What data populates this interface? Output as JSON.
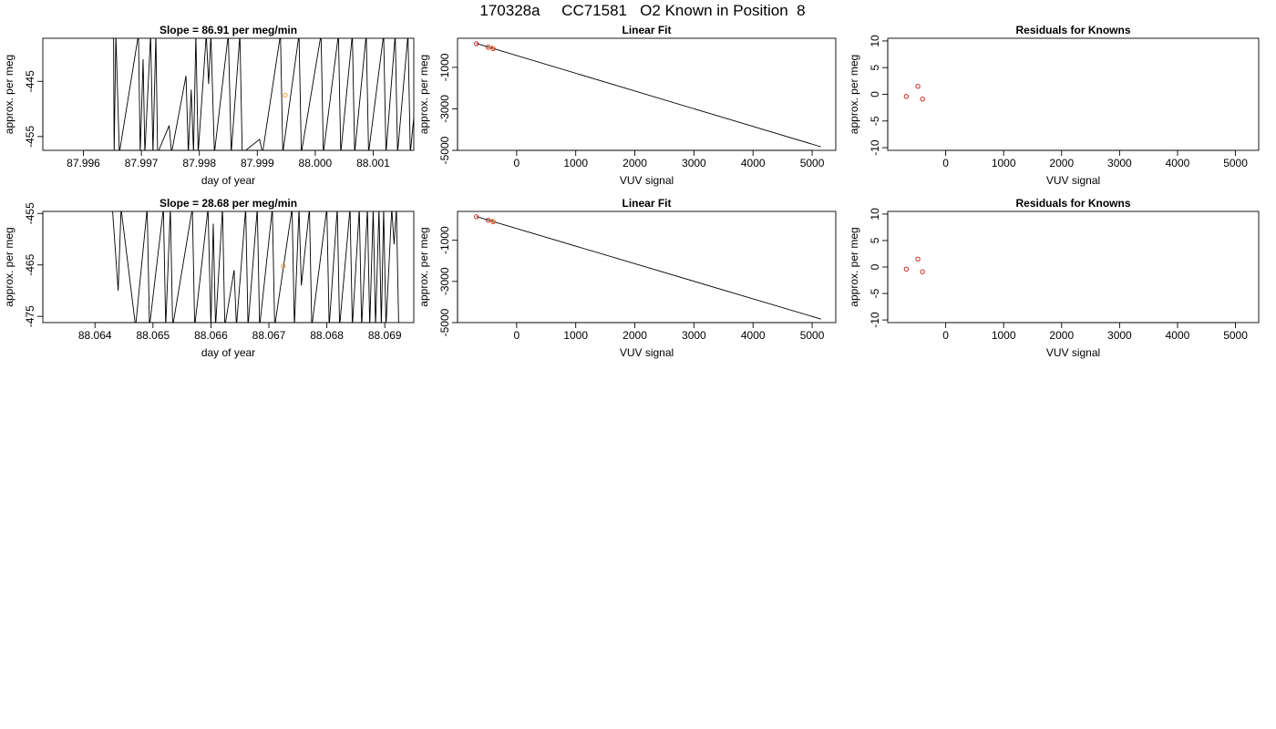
{
  "title": "170328a     CC71581   O2 Known in Position  8",
  "colors": {
    "trace": "#000000",
    "known_point": "#cc2222",
    "sample_point": "#f0a040",
    "frame": "#000000"
  },
  "chart_data": [
    {
      "id": "row1-drift",
      "type": "line",
      "title": "Slope =  86.91  per meg/min",
      "xlabel": "day of year",
      "ylabel": "approx. per meg",
      "xlim": [
        87.9953,
        88.0017
      ],
      "ylim": [
        -457.5,
        -437.2
      ],
      "xticks": [
        87.996,
        87.997,
        87.998,
        87.999,
        88.0,
        88.001
      ],
      "xtick_labels": [
        "87.996",
        "87.997",
        "87.998",
        "87.999",
        "88.000",
        "88.001"
      ],
      "yticks": [
        -445,
        -455
      ],
      "ytick_labels": [
        "-445",
        "-455"
      ],
      "series": [
        {
          "values": [
            [
              87.99652,
              -436.5
            ],
            [
              87.99653,
              -458.0
            ],
            [
              87.99656,
              -436.5
            ],
            [
              87.99662,
              -458.0
            ],
            [
              87.99695,
              -436.5
            ],
            [
              87.99698,
              -458.0
            ],
            [
              87.99703,
              -441.0
            ],
            [
              87.99706,
              -458.0
            ],
            [
              87.99716,
              -436.5
            ],
            [
              87.9972,
              -458.0
            ],
            [
              87.99725,
              -436.5
            ],
            [
              87.99728,
              -458.0
            ],
            [
              87.99748,
              -453.0
            ],
            [
              87.99752,
              -458.0
            ],
            [
              87.99777,
              -444.0
            ],
            [
              87.99781,
              -458.0
            ],
            [
              87.99786,
              -446.5
            ],
            [
              87.9979,
              -458.0
            ],
            [
              87.99794,
              -436.5
            ],
            [
              87.99798,
              -458.0
            ],
            [
              87.99812,
              -436.5
            ],
            [
              87.99816,
              -445.5
            ],
            [
              87.9982,
              -436.5
            ],
            [
              87.99826,
              -458.0
            ],
            [
              87.9985,
              -436.5
            ],
            [
              87.99855,
              -458.0
            ],
            [
              87.9987,
              -436.5
            ],
            [
              87.99874,
              -458.0
            ],
            [
              87.99904,
              -455.5
            ],
            [
              87.99909,
              -458.0
            ],
            [
              87.9994,
              -436.5
            ],
            [
              87.99944,
              -458.0
            ],
            [
              87.99972,
              -436.5
            ],
            [
              87.99976,
              -458.0
            ],
            [
              88.0001,
              -436.5
            ],
            [
              88.00014,
              -458.0
            ],
            [
              88.0004,
              -436.5
            ],
            [
              88.00044,
              -458.0
            ],
            [
              88.00064,
              -436.5
            ],
            [
              88.00068,
              -458.0
            ],
            [
              88.00088,
              -436.5
            ],
            [
              88.00092,
              -458.0
            ],
            [
              88.00118,
              -436.5
            ],
            [
              88.00122,
              -458.0
            ],
            [
              88.00138,
              -436.5
            ],
            [
              88.00142,
              -458.0
            ],
            [
              88.0016,
              -436.5
            ],
            [
              88.00164,
              -458.0
            ],
            [
              88.00184,
              -436.5
            ],
            [
              88.00188,
              -458.0
            ],
            [
              88.00205,
              -436.5
            ],
            [
              88.00208,
              -458.0
            ]
          ]
        }
      ],
      "points": [
        {
          "x": 87.99948,
          "y": -447.5,
          "kind": "sample"
        }
      ]
    },
    {
      "id": "row1-fit",
      "type": "scatter",
      "title": "Linear Fit",
      "xlabel": "VUV signal",
      "ylabel": "approx. per meg",
      "xlim": [
        -1000,
        5400
      ],
      "ylim": [
        -5000,
        400
      ],
      "xticks": [
        0,
        1000,
        2000,
        3000,
        4000,
        5000
      ],
      "xtick_labels": [
        "0",
        "1000",
        "2000",
        "3000",
        "4000",
        "5000"
      ],
      "yticks": [
        -1000,
        -3000,
        -5000
      ],
      "ytick_labels": [
        "-1000",
        "-3000",
        "-5000"
      ],
      "fit_line": [
        [
          -680,
          150
        ],
        [
          5150,
          -4830
        ]
      ],
      "points": [
        {
          "x": -680,
          "y": 140,
          "kind": "known"
        },
        {
          "x": -480,
          "y": -30,
          "kind": "known"
        },
        {
          "x": -400,
          "y": -100,
          "kind": "known"
        },
        {
          "x": -420,
          "y": -60,
          "kind": "sample"
        }
      ]
    },
    {
      "id": "row1-resid",
      "type": "scatter",
      "title": "Residuals for Knowns",
      "xlabel": "VUV signal",
      "ylabel": "approx. per meg",
      "xlim": [
        -1000,
        5400
      ],
      "ylim": [
        -10.5,
        10.5
      ],
      "xticks": [
        0,
        1000,
        2000,
        3000,
        4000,
        5000
      ],
      "xtick_labels": [
        "0",
        "1000",
        "2000",
        "3000",
        "4000",
        "5000"
      ],
      "yticks": [
        10,
        5,
        0,
        -5,
        -10
      ],
      "ytick_labels": [
        "10",
        "5",
        "0",
        "-5",
        "-10"
      ],
      "points": [
        {
          "x": -680,
          "y": -0.4,
          "kind": "known"
        },
        {
          "x": -480,
          "y": 1.5,
          "kind": "known"
        },
        {
          "x": -400,
          "y": -0.9,
          "kind": "known"
        }
      ]
    },
    {
      "id": "row2-drift",
      "type": "line",
      "title": "Slope =  28.68  per meg/min",
      "xlabel": "day of year",
      "ylabel": "approx. per meg",
      "xlim": [
        88.0631,
        88.0695
      ],
      "ylim": [
        -476.2,
        -454.6
      ],
      "xticks": [
        88.064,
        88.065,
        88.066,
        88.067,
        88.068,
        88.069
      ],
      "xtick_labels": [
        "88.064",
        "88.065",
        "88.066",
        "88.067",
        "88.068",
        "88.069"
      ],
      "yticks": [
        -455,
        -465,
        -475
      ],
      "ytick_labels": [
        "-455",
        "-465",
        "-475"
      ],
      "series": [
        {
          "values": [
            [
              88.0643,
              -454.0
            ],
            [
              88.0644,
              -470.0
            ],
            [
              88.06445,
              -454.0
            ],
            [
              88.0647,
              -477.0
            ],
            [
              88.0649,
              -454.0
            ],
            [
              88.06494,
              -477.0
            ],
            [
              88.06518,
              -454.0
            ],
            [
              88.06522,
              -477.0
            ],
            [
              88.0653,
              -454.0
            ],
            [
              88.06534,
              -477.0
            ],
            [
              88.06568,
              -454.0
            ],
            [
              88.06572,
              -477.0
            ],
            [
              88.06595,
              -454.0
            ],
            [
              88.066,
              -477.0
            ],
            [
              88.06604,
              -457.0
            ],
            [
              88.06608,
              -477.0
            ],
            [
              88.0662,
              -454.0
            ],
            [
              88.06624,
              -477.0
            ],
            [
              88.0664,
              -466.0
            ],
            [
              88.06644,
              -477.0
            ],
            [
              88.0666,
              -454.0
            ],
            [
              88.06664,
              -477.0
            ],
            [
              88.0668,
              -454.0
            ],
            [
              88.06684,
              -477.0
            ],
            [
              88.06706,
              -454.0
            ],
            [
              88.0671,
              -477.0
            ],
            [
              88.0674,
              -454.0
            ],
            [
              88.06744,
              -477.0
            ],
            [
              88.06752,
              -454.0
            ],
            [
              88.06756,
              -469.0
            ],
            [
              88.0677,
              -454.0
            ],
            [
              88.06774,
              -477.0
            ],
            [
              88.068,
              -454.0
            ],
            [
              88.06804,
              -477.0
            ],
            [
              88.06818,
              -454.0
            ],
            [
              88.06822,
              -477.0
            ],
            [
              88.0684,
              -454.0
            ],
            [
              88.06844,
              -477.0
            ],
            [
              88.06856,
              -454.0
            ],
            [
              88.0686,
              -477.0
            ],
            [
              88.0687,
              -454.0
            ],
            [
              88.06874,
              -477.0
            ],
            [
              88.0688,
              -454.0
            ],
            [
              88.06884,
              -477.0
            ],
            [
              88.0689,
              -454.0
            ],
            [
              88.06894,
              -477.0
            ],
            [
              88.06898,
              -454.0
            ],
            [
              88.06902,
              -477.0
            ],
            [
              88.06912,
              -454.0
            ],
            [
              88.06916,
              -461.0
            ],
            [
              88.0692,
              -454.0
            ],
            [
              88.06924,
              -477.0
            ]
          ]
        }
      ],
      "points": [
        {
          "x": 88.06725,
          "y": -465.2,
          "kind": "sample"
        }
      ]
    },
    {
      "id": "row2-fit",
      "type": "scatter",
      "title": "Linear Fit",
      "xlabel": "VUV signal",
      "ylabel": "approx. per meg",
      "xlim": [
        -1000,
        5400
      ],
      "ylim": [
        -5000,
        400
      ],
      "xticks": [
        0,
        1000,
        2000,
        3000,
        4000,
        5000
      ],
      "xtick_labels": [
        "0",
        "1000",
        "2000",
        "3000",
        "4000",
        "5000"
      ],
      "yticks": [
        -1000,
        -3000,
        -5000
      ],
      "ytick_labels": [
        "-1000",
        "-3000",
        "-5000"
      ],
      "fit_line": [
        [
          -680,
          150
        ],
        [
          5150,
          -4830
        ]
      ],
      "points": [
        {
          "x": -680,
          "y": 140,
          "kind": "known"
        },
        {
          "x": -480,
          "y": -30,
          "kind": "known"
        },
        {
          "x": -400,
          "y": -100,
          "kind": "known"
        },
        {
          "x": -410,
          "y": -70,
          "kind": "sample"
        }
      ]
    },
    {
      "id": "row2-resid",
      "type": "scatter",
      "title": "Residuals for Knowns",
      "xlabel": "VUV signal",
      "ylabel": "approx. per meg",
      "xlim": [
        -1000,
        5400
      ],
      "ylim": [
        -10.5,
        10.5
      ],
      "xticks": [
        0,
        1000,
        2000,
        3000,
        4000,
        5000
      ],
      "xtick_labels": [
        "0",
        "1000",
        "2000",
        "3000",
        "4000",
        "5000"
      ],
      "yticks": [
        10,
        5,
        0,
        -5,
        -10
      ],
      "ytick_labels": [
        "10",
        "5",
        "0",
        "-5",
        "-10"
      ],
      "points": [
        {
          "x": -680,
          "y": -0.4,
          "kind": "known"
        },
        {
          "x": -480,
          "y": 1.5,
          "kind": "known"
        },
        {
          "x": -400,
          "y": -0.9,
          "kind": "known"
        }
      ]
    }
  ]
}
